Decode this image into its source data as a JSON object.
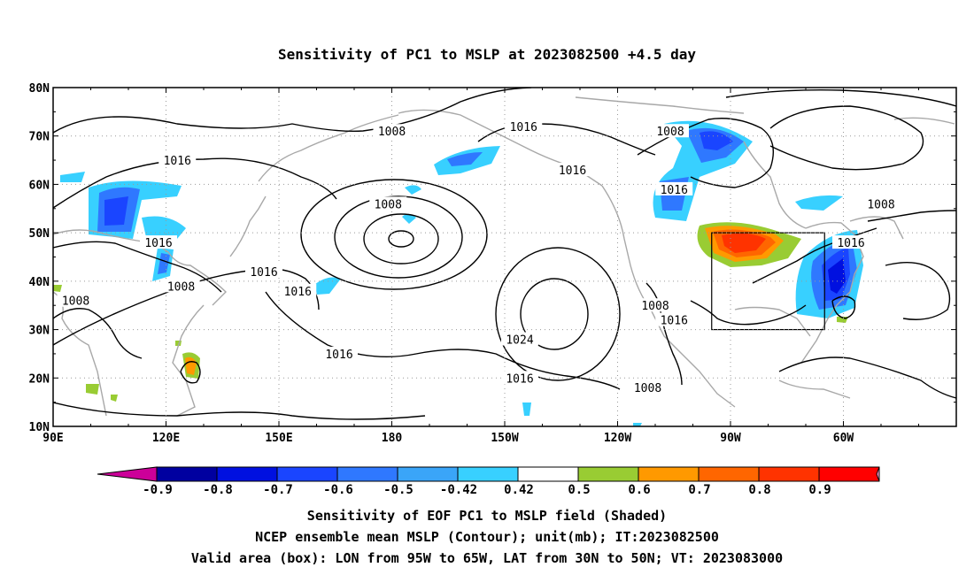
{
  "title": "Sensitivity of PC1 to MSLP at 2023082500 +4.5 day",
  "lat_labels": [
    "80N",
    "70N",
    "60N",
    "50N",
    "40N",
    "30N",
    "20N",
    "10N"
  ],
  "lon_labels": [
    "90E",
    "120E",
    "150E",
    "180",
    "150W",
    "120W",
    "90W",
    "60W"
  ],
  "contour_labels": [
    {
      "text": "1008",
      "lon": 180,
      "lat": 71
    },
    {
      "text": "1016",
      "lon": 123,
      "lat": 65
    },
    {
      "text": "1016",
      "lon": 215,
      "lat": 72
    },
    {
      "text": "1016",
      "lon": 228,
      "lat": 63
    },
    {
      "text": "1008",
      "lon": 179,
      "lat": 56
    },
    {
      "text": "1016",
      "lon": 118,
      "lat": 48
    },
    {
      "text": "1016",
      "lon": 146,
      "lat": 42
    },
    {
      "text": "1008",
      "lon": 124,
      "lat": 39
    },
    {
      "text": "1016",
      "lon": 155,
      "lat": 38
    },
    {
      "text": "1008",
      "lon": 96,
      "lat": 36
    },
    {
      "text": "1008",
      "lon": 254,
      "lat": 71
    },
    {
      "text": "1016",
      "lon": 255,
      "lat": 59
    },
    {
      "text": "1016",
      "lon": 302,
      "lat": 48
    },
    {
      "text": "1008",
      "lon": 310,
      "lat": 56
    },
    {
      "text": "1008",
      "lon": 250,
      "lat": 35
    },
    {
      "text": "1016",
      "lon": 255,
      "lat": 32
    },
    {
      "text": "1024",
      "lon": 214,
      "lat": 28
    },
    {
      "text": "1016",
      "lon": 166,
      "lat": 25
    },
    {
      "text": "1016",
      "lon": 214,
      "lat": 20
    },
    {
      "text": "1008",
      "lon": 248,
      "lat": 18
    }
  ],
  "valid_box": {
    "lon_min": 265,
    "lon_max": 295,
    "lat_min": 30,
    "lat_max": 50
  },
  "colorbar": {
    "colors": [
      "#0000a0",
      "#0010e0",
      "#1a45ff",
      "#2f78ff",
      "#3aa5f8",
      "#38d0ff",
      "#ffffff",
      "#99cc33",
      "#ff9900",
      "#ff6600",
      "#ff3300",
      "#ff0000"
    ],
    "low_arrow_color": "#cc0099",
    "high_arrow_color": "#ff99cc",
    "tick_labels": [
      "-0.9",
      "-0.8",
      "-0.7",
      "-0.6",
      "-0.5",
      "-0.42",
      "0.42",
      "0.5",
      "0.6",
      "0.7",
      "0.8",
      "0.9"
    ]
  },
  "captions": [
    "Sensitivity of EOF PC1 to MSLP field (Shaded)",
    "NCEP ensemble mean MSLP (Contour); unit(mb); IT:2023082500",
    "Valid area (box): LON from 95W to 65W, LAT from 30N to 50N; VT: 2023083000"
  ]
}
